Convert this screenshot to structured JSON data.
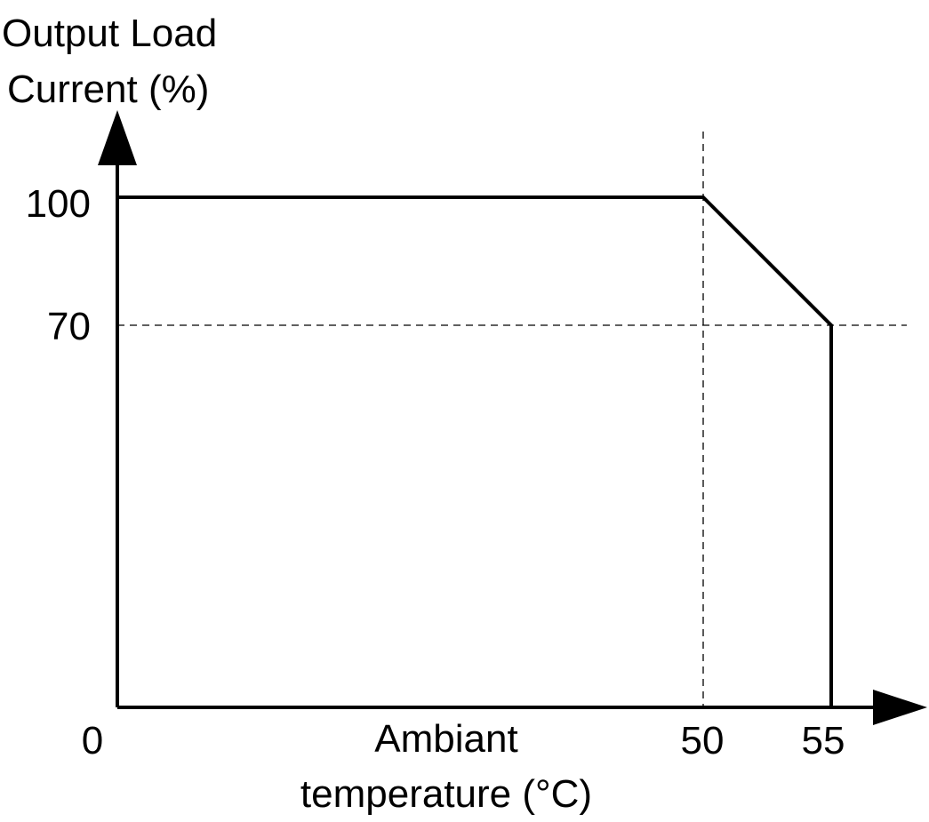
{
  "chart_data": {
    "type": "line",
    "title": "",
    "ylabel_lines": [
      "Output Load",
      "Current (%)"
    ],
    "xlabel_lines": [
      "Ambiant",
      "temperature (°C)"
    ],
    "x_tick_labels": [
      "0",
      "50",
      "55"
    ],
    "y_tick_labels": [
      "100",
      "70"
    ],
    "x_ticks": [
      0,
      50,
      55
    ],
    "y_ticks": [
      100,
      70
    ],
    "series": [
      {
        "x": [
          0,
          50,
          55,
          55
        ],
        "y": [
          100,
          100,
          70,
          0
        ]
      }
    ],
    "reference_lines": {
      "vertical_x": [
        50
      ],
      "horizontal_y": [
        70
      ]
    },
    "xlim": [
      0,
      55
    ],
    "ylim": [
      0,
      100
    ],
    "grid": false,
    "legend": "none"
  }
}
